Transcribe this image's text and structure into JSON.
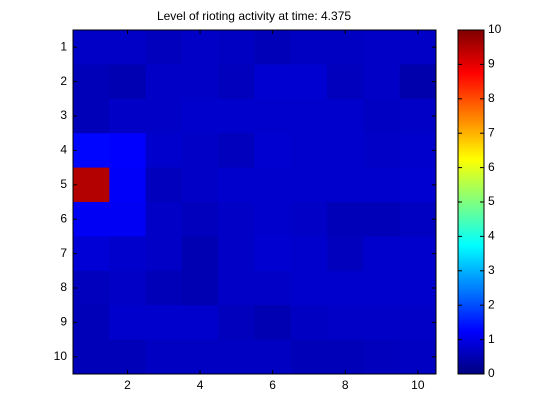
{
  "chart_data": {
    "type": "heatmap",
    "title": "Level of rioting activity at time: 4.375",
    "x": [
      1,
      2,
      3,
      4,
      5,
      6,
      7,
      8,
      9,
      10
    ],
    "y": [
      1,
      2,
      3,
      4,
      5,
      6,
      7,
      8,
      9,
      10
    ],
    "z": [
      [
        0.7,
        0.7,
        0.6,
        0.7,
        0.65,
        0.55,
        0.65,
        0.65,
        0.7,
        0.7
      ],
      [
        0.55,
        0.5,
        0.7,
        0.7,
        0.6,
        0.8,
        0.8,
        0.6,
        0.7,
        0.45
      ],
      [
        0.55,
        0.7,
        0.7,
        0.75,
        0.75,
        0.75,
        0.75,
        0.75,
        0.65,
        0.7
      ],
      [
        1.3,
        1.25,
        0.75,
        0.7,
        0.6,
        0.8,
        0.75,
        0.75,
        0.7,
        0.75
      ],
      [
        9.5,
        1.2,
        0.6,
        0.7,
        0.75,
        0.75,
        0.75,
        0.75,
        0.75,
        0.8
      ],
      [
        1.15,
        1.15,
        0.7,
        0.6,
        0.7,
        0.75,
        0.7,
        0.55,
        0.55,
        0.65
      ],
      [
        0.85,
        0.75,
        0.7,
        0.5,
        0.7,
        0.8,
        0.75,
        0.6,
        0.75,
        0.75
      ],
      [
        0.6,
        0.7,
        0.55,
        0.5,
        0.7,
        0.7,
        0.75,
        0.75,
        0.75,
        0.75
      ],
      [
        0.55,
        0.75,
        0.75,
        0.75,
        0.6,
        0.5,
        0.65,
        0.7,
        0.7,
        0.7
      ],
      [
        0.55,
        0.55,
        0.65,
        0.65,
        0.65,
        0.65,
        0.55,
        0.55,
        0.6,
        0.65
      ]
    ],
    "xlim": [
      0.5,
      10.5
    ],
    "ylim": [
      0.5,
      10.5
    ],
    "y_reversed": true,
    "xticks": [
      2,
      4,
      6,
      8,
      10
    ],
    "yticks": [
      1,
      2,
      3,
      4,
      5,
      6,
      7,
      8,
      9,
      10
    ],
    "colormap": "jet",
    "clim": [
      0,
      10
    ],
    "colorbar_ticks": [
      0,
      1,
      2,
      3,
      4,
      5,
      6,
      7,
      8,
      9,
      10
    ]
  }
}
